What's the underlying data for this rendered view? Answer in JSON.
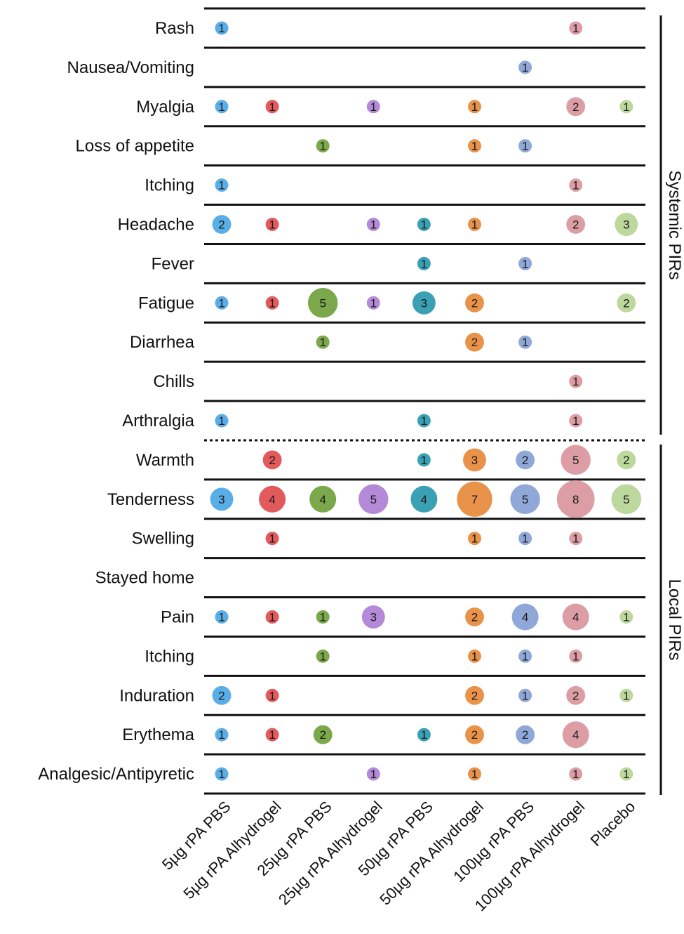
{
  "chart_data": {
    "type": "scatter",
    "subtype": "bubble-matrix",
    "title": "",
    "groups": [
      {
        "label": "Systemic PIRs",
        "rows": [
          "Rash",
          "Nausea/Vomiting",
          "Myalgia",
          "Loss of appetite",
          "Itching",
          "Headache",
          "Fever",
          "Fatigue",
          "Diarrhea",
          "Chills",
          "Arthralgia"
        ]
      },
      {
        "label": "Local PIRs",
        "rows": [
          "Warmth",
          "Tenderness",
          "Swelling",
          "Stayed home",
          "Pain",
          "Itching",
          "Induration",
          "Erythema",
          "Analgesic/Antipyretic"
        ]
      }
    ],
    "rows": [
      "Rash",
      "Nausea/Vomiting",
      "Myalgia",
      "Loss of appetite",
      "Itching",
      "Headache",
      "Fever",
      "Fatigue",
      "Diarrhea",
      "Chills",
      "Arthralgia",
      "Warmth",
      "Tenderness",
      "Swelling",
      "Stayed home",
      "Pain",
      "Itching",
      "Induration",
      "Erythema",
      "Analgesic/Antipyretic"
    ],
    "columns": [
      "5µg rPA PBS",
      "5µg rPA Alhydrogel",
      "25µg rPA PBS",
      "25µg rPA Alhydrogel",
      "50µg rPA PBS",
      "50µg rPA Alhydrogel",
      "100µg rPA PBS",
      "100µg rPA Alhydrogel",
      "Placebo"
    ],
    "column_colors": [
      "#5aaee8",
      "#e25a5c",
      "#7aa84a",
      "#b48ad8",
      "#3aa0b4",
      "#e8924a",
      "#8fa8d8",
      "#dc9ea4",
      "#bcd89c"
    ],
    "divider_after_row": "Arthralgia",
    "values": [
      [
        1,
        null,
        null,
        null,
        null,
        null,
        null,
        1,
        null
      ],
      [
        null,
        null,
        null,
        null,
        null,
        null,
        1,
        null,
        null
      ],
      [
        1,
        1,
        null,
        1,
        null,
        1,
        null,
        2,
        1
      ],
      [
        null,
        null,
        1,
        null,
        null,
        1,
        1,
        null,
        null
      ],
      [
        1,
        null,
        null,
        null,
        null,
        null,
        null,
        1,
        null
      ],
      [
        2,
        1,
        null,
        1,
        1,
        1,
        null,
        2,
        3
      ],
      [
        null,
        null,
        null,
        null,
        1,
        null,
        1,
        null,
        null
      ],
      [
        1,
        1,
        5,
        1,
        3,
        2,
        null,
        null,
        2
      ],
      [
        null,
        null,
        1,
        null,
        null,
        2,
        1,
        null,
        null
      ],
      [
        null,
        null,
        null,
        null,
        null,
        null,
        null,
        1,
        null
      ],
      [
        1,
        null,
        null,
        null,
        1,
        null,
        null,
        1,
        null
      ],
      [
        null,
        2,
        null,
        null,
        1,
        3,
        2,
        5,
        2
      ],
      [
        3,
        4,
        4,
        5,
        4,
        7,
        5,
        8,
        5
      ],
      [
        null,
        1,
        null,
        null,
        null,
        1,
        1,
        1,
        null
      ],
      [
        null,
        null,
        null,
        null,
        null,
        null,
        null,
        null,
        null
      ],
      [
        1,
        1,
        1,
        3,
        null,
        2,
        4,
        4,
        1
      ],
      [
        null,
        null,
        1,
        null,
        null,
        1,
        1,
        1,
        null
      ],
      [
        2,
        1,
        null,
        null,
        null,
        2,
        1,
        2,
        1
      ],
      [
        1,
        1,
        2,
        null,
        1,
        2,
        2,
        4,
        null
      ],
      [
        1,
        null,
        null,
        1,
        null,
        1,
        null,
        1,
        1
      ]
    ]
  }
}
